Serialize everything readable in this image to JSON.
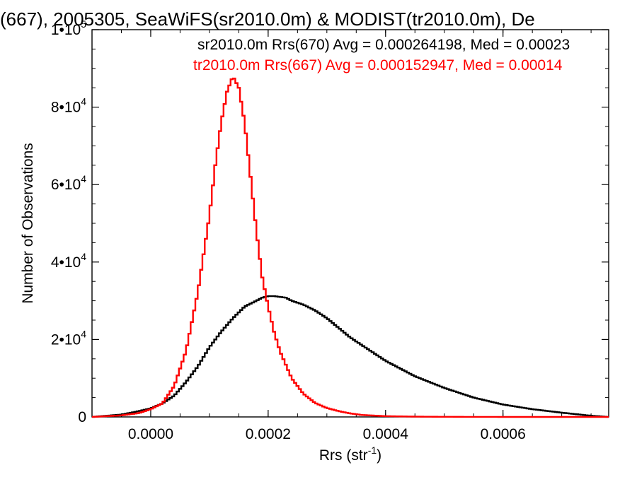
{
  "chart_data": {
    "type": "line",
    "title": "(667), 2005305, SeaWiFS(sr2010.0m) & MODIST(tr2010.0m), De",
    "xlabel": "Rrs (str",
    "xlabel_sup": "-1",
    "xlabel_end": ")",
    "ylabel": "Number of Observations",
    "xlim": [
      -0.0001,
      0.00078
    ],
    "ylim": [
      0,
      100000
    ],
    "x_ticks": [
      {
        "value": 0.0,
        "label": "0.0000"
      },
      {
        "value": 0.0002,
        "label": "0.0002"
      },
      {
        "value": 0.0004,
        "label": "0.0004"
      },
      {
        "value": 0.0006,
        "label": "0.0006"
      }
    ],
    "y_ticks": [
      {
        "value": 0,
        "label": "0",
        "exp": ""
      },
      {
        "value": 20000,
        "label": "2•10",
        "exp": "4"
      },
      {
        "value": 40000,
        "label": "4•10",
        "exp": "4"
      },
      {
        "value": 60000,
        "label": "6•10",
        "exp": "4"
      },
      {
        "value": 80000,
        "label": "8•10",
        "exp": "4"
      },
      {
        "value": 100000,
        "label": "1•10",
        "exp": "5"
      }
    ],
    "grid": false,
    "legend_position": "top-right",
    "series": [
      {
        "name": "sr2010.0m Rrs(670) Avg = 0.000264198, Med = 0.00023",
        "color": "#000000",
        "x": [
          -0.0001,
          -5e-05,
          -2e-05,
          0.0,
          2e-05,
          4e-05,
          6e-05,
          8e-05,
          0.0001,
          0.00012,
          0.00014,
          0.00016,
          0.00018,
          0.00019,
          0.0002,
          0.00021,
          0.00022,
          0.00023,
          0.00024,
          0.00025,
          0.00026,
          0.00028,
          0.0003,
          0.00032,
          0.00034,
          0.00036,
          0.00038,
          0.0004,
          0.00045,
          0.0005,
          0.00055,
          0.0006,
          0.00065,
          0.0007,
          0.00075,
          0.00078
        ],
        "y": [
          0,
          600,
          1500,
          2200,
          3500,
          5500,
          9000,
          13000,
          18000,
          22000,
          25500,
          28500,
          30000,
          30800,
          31200,
          31200,
          31000,
          30800,
          30000,
          29500,
          29000,
          27500,
          25500,
          23000,
          20500,
          18500,
          16500,
          14500,
          10500,
          7500,
          5000,
          3200,
          2000,
          1100,
          300,
          0
        ]
      },
      {
        "name": "tr2010.0m Rrs(667) Avg = 0.000152947, Med = 0.00014",
        "color": "#ff0000",
        "x": [
          -0.0001,
          -5e-05,
          -2e-05,
          0.0,
          2e-05,
          4e-05,
          6e-05,
          8e-05,
          0.0001,
          0.00011,
          0.00012,
          0.00013,
          0.00014,
          0.00015,
          0.00016,
          0.00017,
          0.00018,
          0.00019,
          0.0002,
          0.00021,
          0.00022,
          0.00024,
          0.00026,
          0.00028,
          0.0003,
          0.00032,
          0.00034,
          0.00036,
          0.0004,
          0.00045,
          0.0005,
          0.0006,
          0.00078
        ],
        "y": [
          0,
          400,
          1000,
          2000,
          3500,
          8000,
          17000,
          32000,
          52000,
          65000,
          76000,
          84000,
          88000,
          85000,
          76000,
          62000,
          48000,
          36000,
          28500,
          22000,
          17000,
          10000,
          6000,
          3600,
          2300,
          1500,
          900,
          500,
          200,
          80,
          30,
          0,
          0
        ]
      }
    ]
  }
}
